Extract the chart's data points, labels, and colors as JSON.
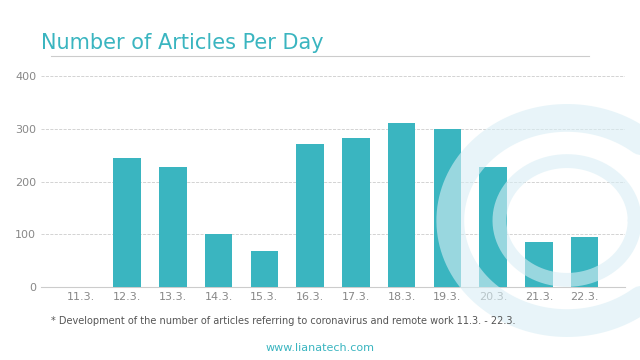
{
  "title": "Number of Articles Per Day",
  "categories": [
    "11.3.",
    "12.3.",
    "13.3.",
    "14.3.",
    "15.3.",
    "16.3.",
    "17.3.",
    "18.3.",
    "19.3.",
    "20.3.",
    "21.3.",
    "22.3."
  ],
  "values": [
    0,
    245,
    228,
    100,
    68,
    272,
    283,
    312,
    300,
    228,
    85,
    95
  ],
  "bar_color": "#3ab5c0",
  "background_color": "#ffffff",
  "ylim": [
    0,
    420
  ],
  "yticks": [
    0,
    100,
    200,
    300,
    400
  ],
  "grid_color": "#cccccc",
  "title_color": "#3ab5c0",
  "title_fontsize": 15,
  "annotation": "* Development of the number of articles referring to coronavirus and remote work 11.3. - 22.3.",
  "annotation_fontsize": 7,
  "tick_fontsize": 8,
  "tick_color": "#888888",
  "watermark_color": "#d9eef5",
  "footer_text": "www.lianatech.com",
  "footer_color": "#3ab5c0"
}
